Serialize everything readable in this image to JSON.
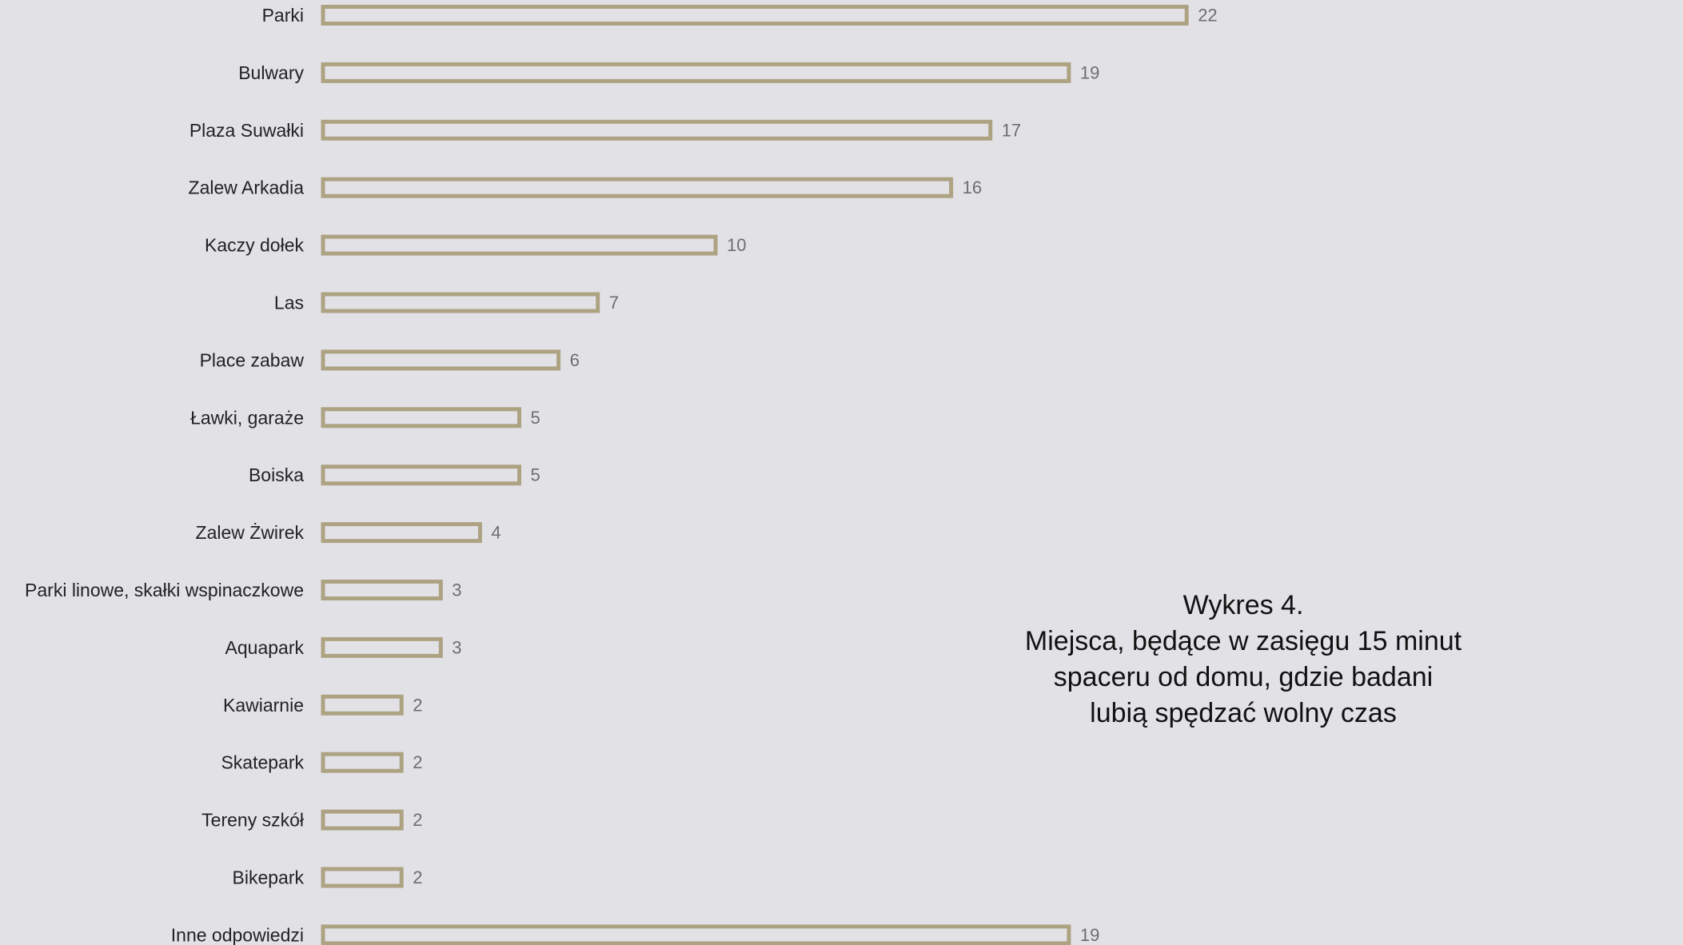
{
  "colors": {
    "background": "#e2e2e6",
    "bar_outline": "#ada383",
    "category_text": "#222222",
    "value_text": "#6e6e6e",
    "title_text": "#111111"
  },
  "chart_data": {
    "type": "bar",
    "orientation": "horizontal",
    "bar_style": "outlined",
    "categories": [
      "Parki",
      "Bulwary",
      "Plaza Suwałki",
      "Zalew Arkadia",
      "Kaczy dołek",
      "Las",
      "Place zabaw",
      "Ławki, garaże",
      "Boiska",
      "Zalew Żwirek",
      "Parki linowe, skałki wspinaczkowe",
      "Aquapark",
      "Kawiarnie",
      "Skatepark",
      "Tereny szkół",
      "Bikepark",
      "Inne odpowiedzi"
    ],
    "values": [
      22,
      19,
      17,
      16,
      10,
      7,
      6,
      5,
      5,
      4,
      3,
      3,
      2,
      2,
      2,
      2,
      19
    ],
    "title_lines": [
      "Wykres 4.",
      "Miejsca, będące w zasięgu 15 minut",
      "spaceru od domu, gdzie badani",
      "lubią spędzać wolny czas"
    ],
    "xlim": [
      0,
      22
    ],
    "grid": false,
    "legend": "none",
    "data_labels": true
  }
}
